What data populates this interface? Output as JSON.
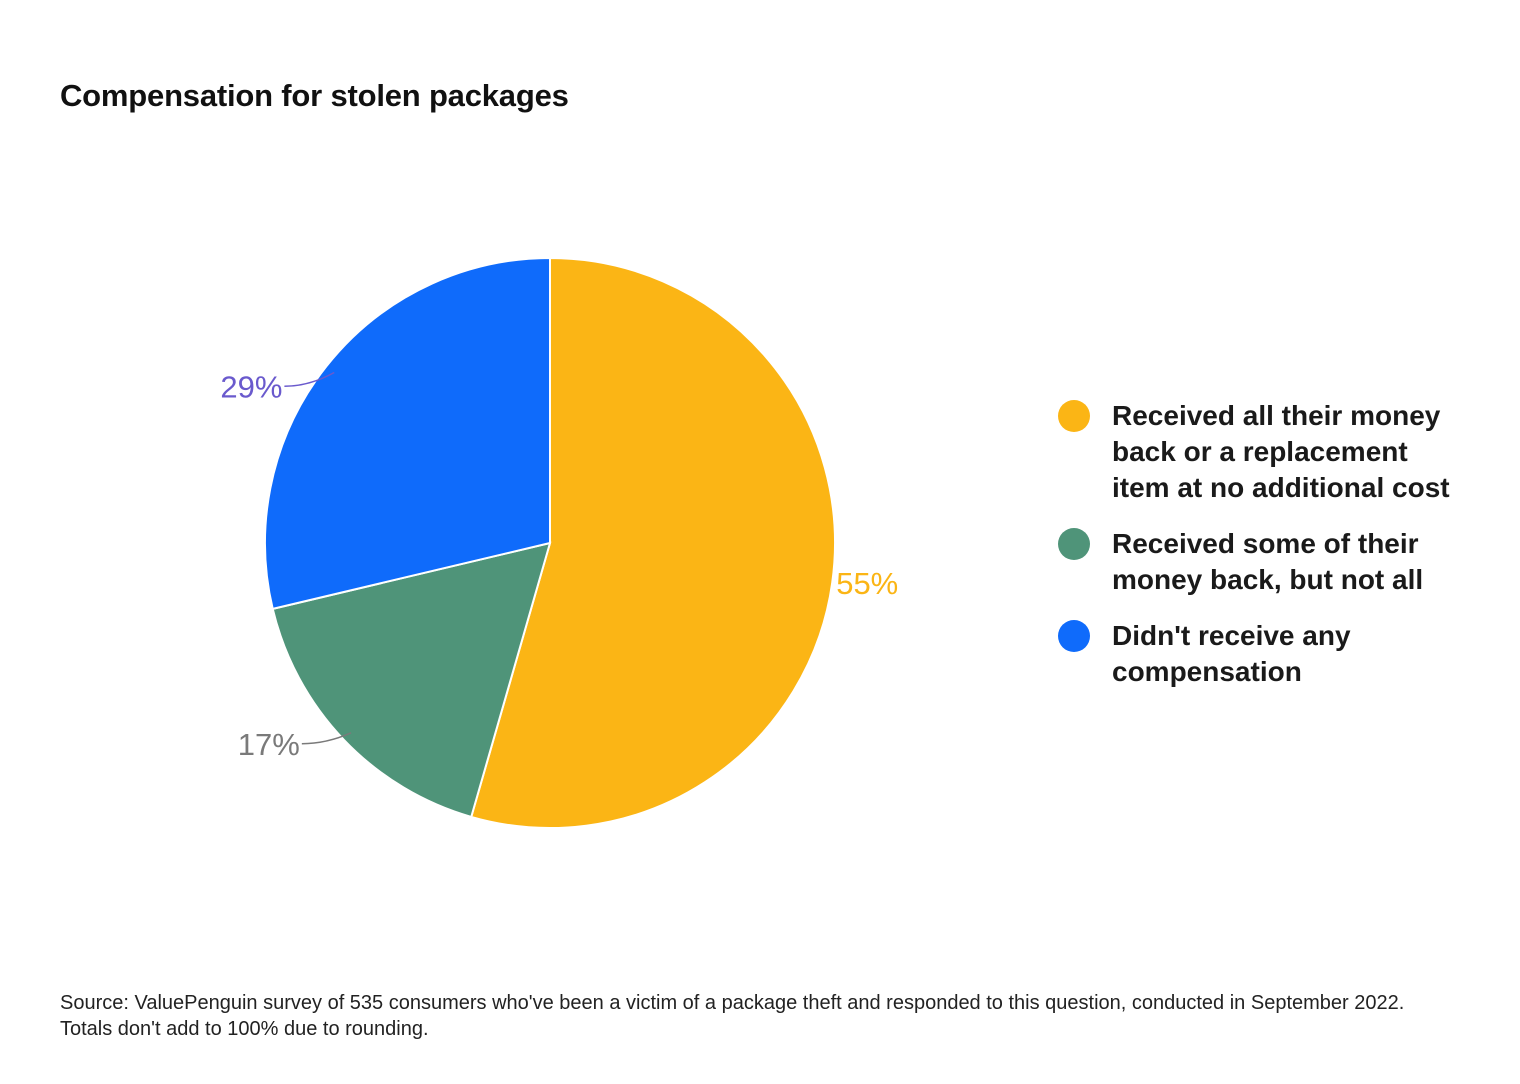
{
  "chart_data": {
    "type": "pie",
    "title": "Compensation for stolen packages",
    "slices": [
      {
        "name": "Received all their money back or a replacement item at no additional cost",
        "value": 55,
        "label": "55%",
        "color": "#fbb515"
      },
      {
        "name": "Received some of their money back, but not all",
        "value": 17,
        "label": "17%",
        "color": "#4f9479"
      },
      {
        "name": "Didn't receive any compensation",
        "value": 29,
        "label": "29%",
        "color": "#0f6bfb"
      }
    ],
    "label_colors": [
      "#fbb515",
      "#7a7a7a",
      "#6a5acd"
    ],
    "legend_position": "right"
  },
  "source": "Source: ValuePenguin survey of 535 consumers who've been a victim of a package theft and responded to this question, conducted in September 2022. Totals don't add to 100% due to rounding."
}
